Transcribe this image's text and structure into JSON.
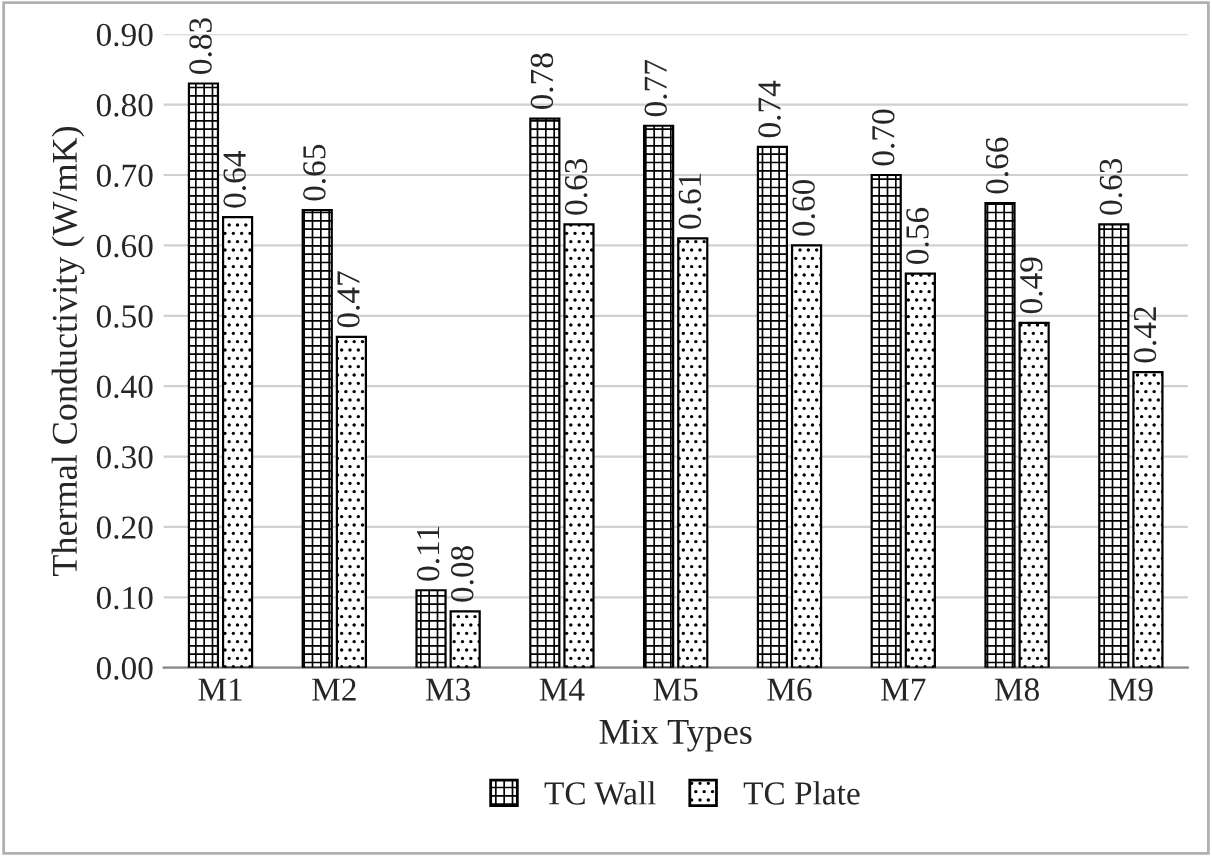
{
  "chart_data": {
    "type": "bar",
    "xlabel": "Mix Types",
    "ylabel": "Thermal Conductivity (W/mK)",
    "categories": [
      "M1",
      "M2",
      "M3",
      "M4",
      "M5",
      "M6",
      "M7",
      "M8",
      "M9"
    ],
    "series": [
      {
        "name": "TC Wall",
        "color": "#000000",
        "values": [
          0.83,
          0.65,
          0.11,
          0.78,
          0.77,
          0.74,
          0.7,
          0.66,
          0.63
        ],
        "value_labels": [
          "0.83",
          "0.65",
          "0.11",
          "0.78",
          "0.77",
          "0.74",
          "0.70",
          "0.66",
          "0.63"
        ]
      },
      {
        "name": "TC Plate",
        "color": "#000000",
        "values": [
          0.64,
          0.47,
          0.08,
          0.63,
          0.61,
          0.6,
          0.56,
          0.49,
          0.42
        ],
        "value_labels": [
          "0.64",
          "0.47",
          "0.08",
          "0.63",
          "0.61",
          "0.60",
          "0.56",
          "0.49",
          "0.42"
        ]
      }
    ],
    "ylim": [
      0,
      0.9
    ],
    "yticks": [
      {
        "value": 0,
        "label": "0.00"
      },
      {
        "value": 0.1,
        "label": "0.10"
      },
      {
        "value": 0.2,
        "label": "0.20"
      },
      {
        "value": 0.3,
        "label": "0.30"
      },
      {
        "value": 0.4,
        "label": "0.40"
      },
      {
        "value": 0.5,
        "label": "0.50"
      },
      {
        "value": 0.6,
        "label": "0.60"
      },
      {
        "value": 0.7,
        "label": "0.70"
      },
      {
        "value": 0.8,
        "label": "0.80"
      },
      {
        "value": 0.9,
        "label": "0.90"
      }
    ],
    "grid": "y",
    "legend": "bottom"
  }
}
